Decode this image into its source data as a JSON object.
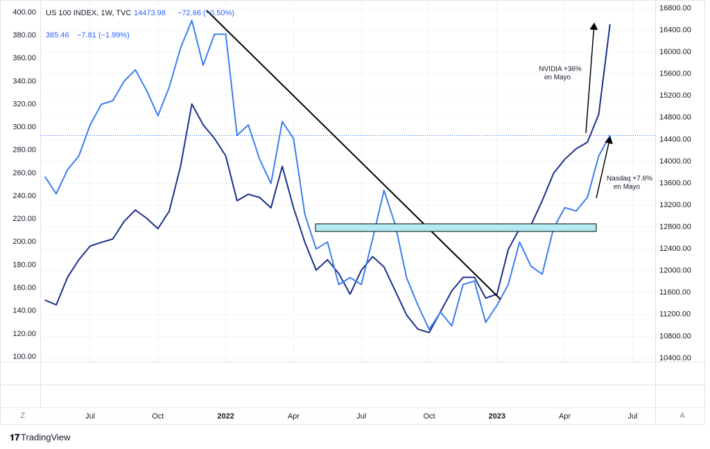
{
  "chart_data": {
    "type": "line",
    "categories": [
      null,
      null,
      null,
      null,
      "Jul",
      null,
      null,
      null,
      null,
      null,
      "Oct",
      null,
      null,
      null,
      null,
      null,
      "2022",
      null,
      null,
      null,
      null,
      null,
      "Apr",
      null,
      null,
      null,
      null,
      null,
      "Jul",
      null,
      null,
      null,
      null,
      null,
      "Oct",
      null,
      null,
      null,
      null,
      null,
      "2023",
      null,
      null,
      null,
      null,
      null,
      "Apr",
      null,
      null,
      null,
      null,
      null,
      "Jul"
    ],
    "series": [
      {
        "name": "US 100 INDEX, 1W, TVC",
        "color": "#1b2e86",
        "axis": "y2",
        "last_value": 14473.98,
        "change_label": "−72.66 (−0.50%)",
        "values": [
          11464,
          11375,
          11880,
          12200,
          12450,
          12520,
          12580,
          12900,
          13110,
          12960,
          12770,
          13090,
          13910,
          15050,
          14670,
          14420,
          14100,
          13280,
          13400,
          13340,
          13150,
          13910,
          13150,
          12520,
          12010,
          12200,
          11950,
          11570,
          12010,
          12260,
          12070,
          11630,
          11190,
          10930,
          10870,
          11250,
          11630,
          11880,
          11880,
          11500,
          11570,
          12390,
          12770,
          12830,
          13280,
          13780,
          14040,
          14230,
          14350,
          14860,
          16510,
          null,
          null
        ]
      },
      {
        "color": "#3b7ded",
        "last_value": 385.46,
        "change_label": "−7.81 (−1.99%)",
        "values": [
          257,
          242,
          263,
          275,
          302,
          320,
          323,
          340,
          350,
          332,
          310,
          335,
          369,
          393,
          354,
          381,
          381,
          293,
          302,
          272,
          251,
          305,
          290,
          224,
          194,
          200,
          163,
          169,
          163,
          203,
          245,
          215,
          169,
          145,
          124,
          139,
          127,
          163,
          166,
          130,
          145,
          163,
          200,
          179,
          172,
          212,
          230,
          227,
          239,
          275,
          293,
          null,
          null
        ]
      }
    ],
    "ylim": [
      95.8,
      406
    ],
    "yticks": [
      {
        "value": 100,
        "label": "100.00"
      },
      {
        "value": 120,
        "label": "120.00"
      },
      {
        "value": 140,
        "label": "140.00"
      },
      {
        "value": 160,
        "label": "160.00"
      },
      {
        "value": 180,
        "label": "180.00"
      },
      {
        "value": 200,
        "label": "200.00"
      },
      {
        "value": 220,
        "label": "220.00"
      },
      {
        "value": 240,
        "label": "240.00"
      },
      {
        "value": 260,
        "label": "260.00"
      },
      {
        "value": 280,
        "label": "280.00"
      },
      {
        "value": 300,
        "label": "300.00"
      },
      {
        "value": 320,
        "label": "320.00"
      },
      {
        "value": 340,
        "label": "340.00"
      },
      {
        "value": 360,
        "label": "360.00"
      },
      {
        "value": 380,
        "label": "380.00"
      },
      {
        "value": 400,
        "label": "400.00"
      }
    ],
    "y2lim": [
      10336,
      16851
    ],
    "y2ticks": [
      {
        "value": 10400,
        "label": "10400.00"
      },
      {
        "value": 10800,
        "label": "10800.00"
      },
      {
        "value": 11200,
        "label": "11200.00"
      },
      {
        "value": 11600,
        "label": "11600.00"
      },
      {
        "value": 12000,
        "label": "12000.00"
      },
      {
        "value": 12400,
        "label": "12400.00"
      },
      {
        "value": 12800,
        "label": "12800.00"
      },
      {
        "value": 13200,
        "label": "13200.00"
      },
      {
        "value": 13600,
        "label": "13600.00"
      },
      {
        "value": 14000,
        "label": "14000.00"
      },
      {
        "value": 14400,
        "label": "14400.00"
      },
      {
        "value": 14800,
        "label": "14800.00"
      },
      {
        "value": 15200,
        "label": "15200.00"
      },
      {
        "value": 15600,
        "label": "15600.00"
      },
      {
        "value": 16000,
        "label": "16000.00"
      },
      {
        "value": 16400,
        "label": "16400.00"
      },
      {
        "value": 16800,
        "label": "16800.00"
      }
    ],
    "grid": true,
    "annotations": [
      [
        "NVIDIA +36%",
        "en Mayo"
      ],
      [
        "Nasdaq +7.6%",
        "en Mayo"
      ]
    ]
  },
  "buttons": [
    "Z",
    "A"
  ],
  "brand": "TradingView"
}
